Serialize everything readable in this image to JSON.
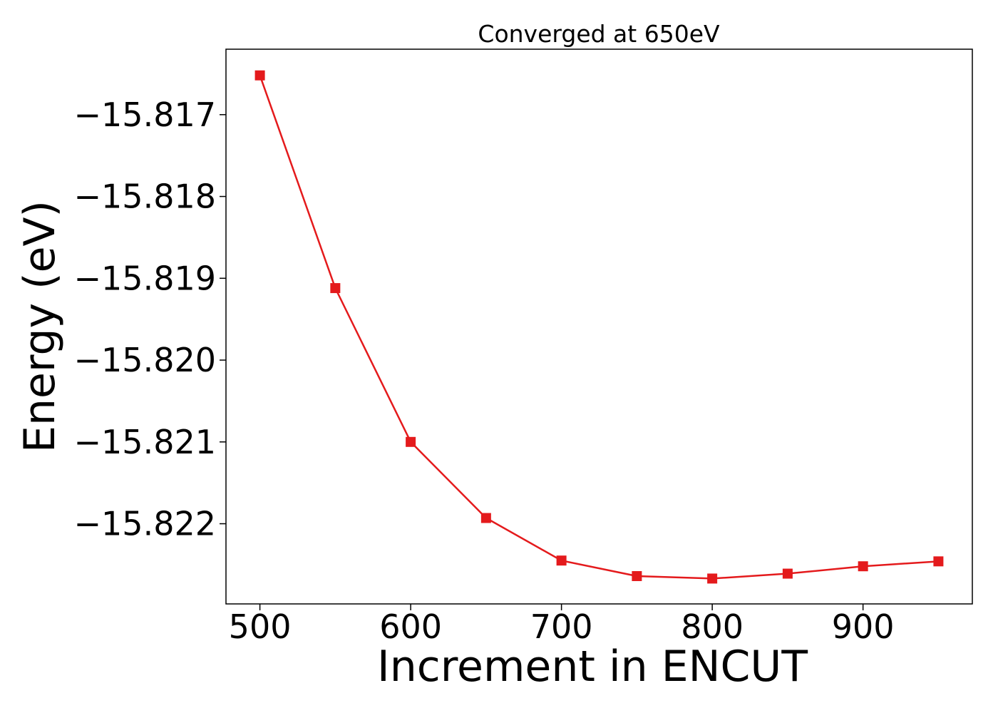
{
  "chart_data": {
    "type": "line",
    "title": "Converged at 650eV",
    "xlabel": "Increment in ENCUT",
    "ylabel": "Energy (eV)",
    "xlim": [
      477.5,
      972.5
    ],
    "ylim": [
      -15.82298,
      -15.8162
    ],
    "grid": false,
    "legend": "none",
    "x_ticks": [
      500,
      600,
      700,
      800,
      900
    ],
    "x_tick_labels": [
      "500",
      "600",
      "700",
      "800",
      "900"
    ],
    "y_ticks": [
      -15.817,
      -15.818,
      -15.819,
      -15.82,
      -15.821,
      -15.822
    ],
    "y_tick_labels": [
      "−15.817",
      "−15.818",
      "−15.819",
      "−15.820",
      "−15.821",
      "−15.822"
    ],
    "series": [
      {
        "color": "#e41a1c",
        "marker": "square",
        "x": [
          500,
          550,
          600,
          650,
          700,
          750,
          800,
          850,
          900,
          950
        ],
        "y": [
          -15.81652,
          -15.81912,
          -15.821,
          -15.82193,
          -15.82245,
          -15.82264,
          -15.82267,
          -15.82261,
          -15.82252,
          -15.82246
        ]
      }
    ]
  }
}
